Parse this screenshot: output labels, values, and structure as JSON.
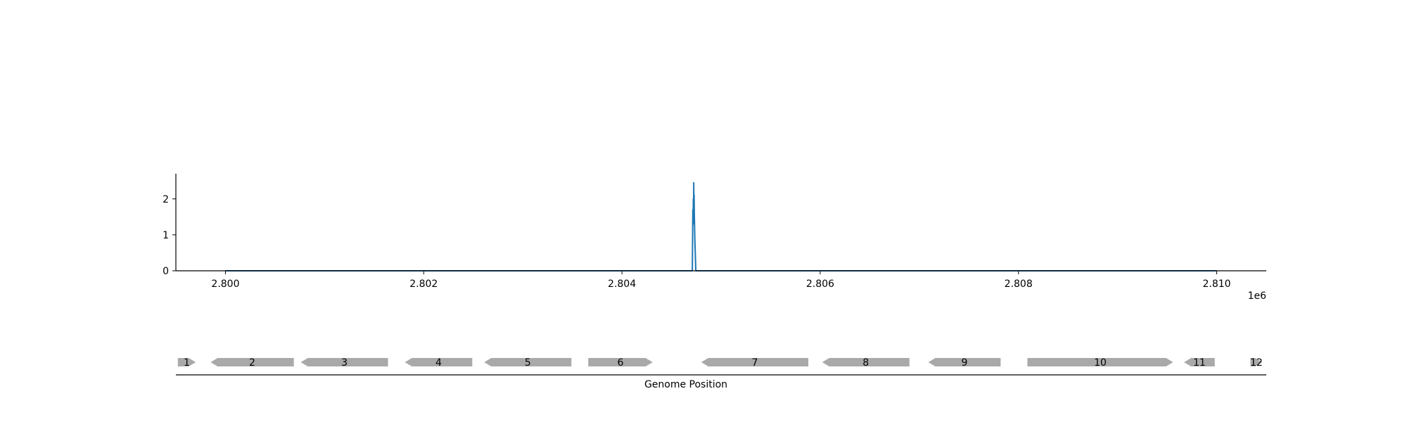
{
  "chart_data": [
    {
      "type": "line",
      "title": "",
      "xlabel": "",
      "ylabel": "",
      "x_offset_label": "1e6",
      "xlim": [
        2799500,
        2810500
      ],
      "ylim": [
        0,
        2.7
      ],
      "x_ticks": [
        2800000,
        2802000,
        2804000,
        2806000,
        2808000,
        2810000
      ],
      "x_tick_labels": [
        "2.800",
        "2.802",
        "2.804",
        "2.806",
        "2.808",
        "2.810"
      ],
      "y_ticks": [
        0,
        1,
        2
      ],
      "y_tick_labels": [
        "0",
        "1",
        "2"
      ],
      "grid": false,
      "line_color": "#1f77b4",
      "series": [
        {
          "x": [
            2800000,
            2804700,
            2804710,
            2804715,
            2804718,
            2804720,
            2804722,
            2804724,
            2804726,
            2804728,
            2804730,
            2804735,
            2804745,
            2804760,
            2810000
          ],
          "y": [
            0,
            0,
            0,
            1.7,
            1.3,
            2.0,
            1.5,
            2.45,
            1.7,
            2.1,
            1.6,
            0.9,
            0,
            0,
            0
          ]
        }
      ]
    },
    {
      "type": "gene_track",
      "xlabel": "Genome Position",
      "xlim": [
        2799500,
        2810500
      ],
      "gene_color": "#a9a9a9",
      "genes": [
        {
          "label": "1",
          "start": 2799520,
          "end": 2799700,
          "strand": "+"
        },
        {
          "label": "2",
          "start": 2799850,
          "end": 2800690,
          "strand": "-"
        },
        {
          "label": "3",
          "start": 2800760,
          "end": 2801640,
          "strand": "-"
        },
        {
          "label": "4",
          "start": 2801810,
          "end": 2802490,
          "strand": "-"
        },
        {
          "label": "5",
          "start": 2802610,
          "end": 2803490,
          "strand": "-"
        },
        {
          "label": "6",
          "start": 2803660,
          "end": 2804310,
          "strand": "+"
        },
        {
          "label": "7",
          "start": 2804800,
          "end": 2805880,
          "strand": "-"
        },
        {
          "label": "8",
          "start": 2806020,
          "end": 2806900,
          "strand": "-"
        },
        {
          "label": "9",
          "start": 2807090,
          "end": 2807820,
          "strand": "-"
        },
        {
          "label": "10",
          "start": 2808090,
          "end": 2809560,
          "strand": "+"
        },
        {
          "label": "11",
          "start": 2809670,
          "end": 2809980,
          "strand": "-"
        },
        {
          "label": "12",
          "start": 2810340,
          "end": 2810460,
          "strand": "+"
        }
      ]
    }
  ]
}
